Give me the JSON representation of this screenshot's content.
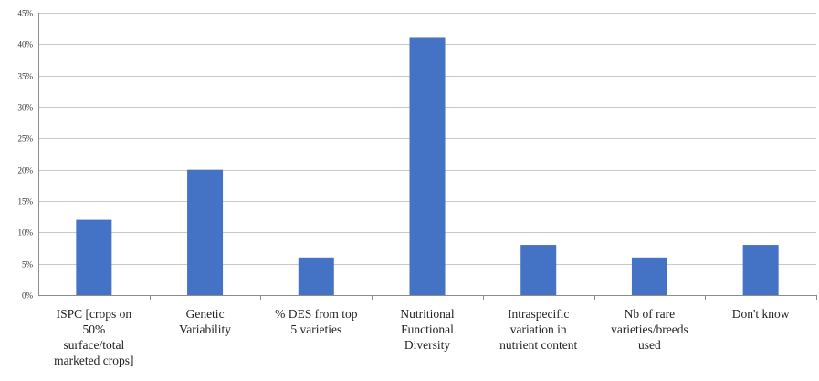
{
  "chart_data": {
    "type": "bar",
    "title": "",
    "xlabel": "",
    "ylabel": "",
    "categories": [
      [
        "ISPC [crops on",
        "50%",
        "surface/total",
        "marketed crops]"
      ],
      [
        "Genetic",
        "Variability"
      ],
      [
        "% DES from top",
        "5 varieties"
      ],
      [
        "Nutritional",
        "Functional",
        "Diversity"
      ],
      [
        "Intraspecific",
        "variation in",
        "nutrient content"
      ],
      [
        "Nb of rare",
        "varieties/breeds",
        "used"
      ],
      [
        "Don't know"
      ]
    ],
    "values": [
      12,
      20,
      6,
      41,
      8,
      6,
      8
    ],
    "ylim": [
      0,
      45
    ],
    "yticks": [
      "0%",
      "5%",
      "10%",
      "15%",
      "20%",
      "25%",
      "30%",
      "35%",
      "40%",
      "45%"
    ],
    "grid": true,
    "legend": "none",
    "bar_color": "#4472C4",
    "grid_color": "#c9c9c9",
    "axis_color": "#8c8c8c"
  }
}
